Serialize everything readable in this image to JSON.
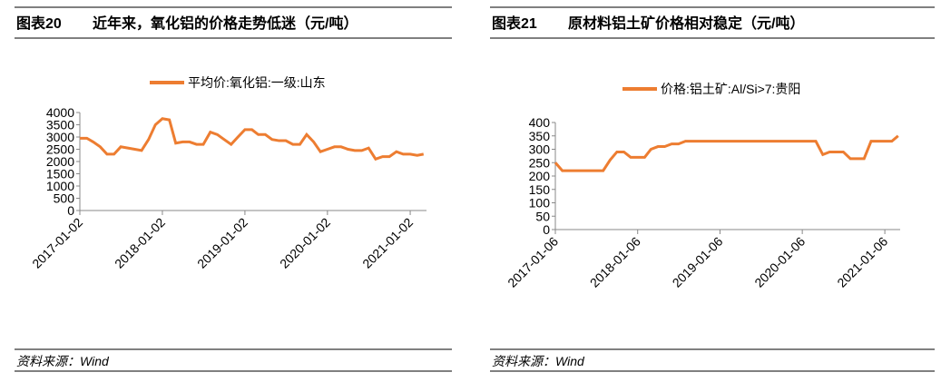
{
  "header": [
    {
      "number": "图表20",
      "title": "近年来，氧化铝的价格走势低迷（元/吨）"
    },
    {
      "number": "图表21",
      "title": "原材料铝土矿价格相对稳定（元/吨）"
    }
  ],
  "source": [
    "资料来源：Wind",
    "资料来源：Wind"
  ],
  "chart_data": [
    {
      "type": "line",
      "x": [
        "2017-01-02",
        "2017-02-02",
        "2017-03-02",
        "2017-04-02",
        "2017-05-02",
        "2017-06-02",
        "2017-07-02",
        "2017-08-02",
        "2017-09-02",
        "2017-10-02",
        "2017-11-02",
        "2017-12-02",
        "2018-01-02",
        "2018-02-02",
        "2018-03-02",
        "2018-04-02",
        "2018-05-02",
        "2018-06-02",
        "2018-07-02",
        "2018-08-02",
        "2018-09-02",
        "2018-10-02",
        "2018-11-02",
        "2018-12-02",
        "2019-01-02",
        "2019-02-02",
        "2019-03-02",
        "2019-04-02",
        "2019-05-02",
        "2019-06-02",
        "2019-07-02",
        "2019-08-02",
        "2019-09-02",
        "2019-10-02",
        "2019-11-02",
        "2019-12-02",
        "2020-01-02",
        "2020-02-02",
        "2020-03-02",
        "2020-04-02",
        "2020-05-02",
        "2020-06-02",
        "2020-07-02",
        "2020-08-02",
        "2020-09-02",
        "2020-10-02",
        "2020-11-02",
        "2020-12-02",
        "2021-01-02",
        "2021-02-02",
        "2021-03-02"
      ],
      "series": [
        {
          "name": "平均价:氧化铝:一级:山东",
          "color": "#ed7d31",
          "values": [
            2950,
            2950,
            2800,
            2600,
            2300,
            2300,
            2600,
            2550,
            2500,
            2450,
            2900,
            3500,
            3750,
            3700,
            2750,
            2800,
            2800,
            2700,
            2700,
            3200,
            3100,
            2900,
            2700,
            3000,
            3300,
            3300,
            3100,
            3100,
            2900,
            2850,
            2850,
            2700,
            2700,
            3100,
            2800,
            2400,
            2500,
            2600,
            2600,
            2500,
            2450,
            2450,
            2550,
            2100,
            2200,
            2200,
            2400,
            2300,
            2300,
            2250,
            2300
          ]
        }
      ],
      "xlim": [
        "2017-01-02",
        "2021-03-15"
      ],
      "xticks": [
        "2017-01-02",
        "2018-01-02",
        "2019-01-02",
        "2020-01-02",
        "2021-01-02"
      ],
      "ylim": [
        0,
        4000
      ],
      "yticks": [
        0,
        500,
        1000,
        1500,
        2000,
        2500,
        3000,
        3500,
        4000
      ]
    },
    {
      "type": "line",
      "x": [
        "2017-01-06",
        "2017-02-06",
        "2017-03-06",
        "2017-04-06",
        "2017-05-06",
        "2017-06-06",
        "2017-07-06",
        "2017-08-06",
        "2017-09-06",
        "2017-10-06",
        "2017-11-06",
        "2017-12-06",
        "2018-01-06",
        "2018-02-06",
        "2018-03-06",
        "2018-04-06",
        "2018-05-06",
        "2018-06-06",
        "2018-07-06",
        "2018-08-06",
        "2018-09-06",
        "2018-10-06",
        "2018-11-06",
        "2018-12-06",
        "2019-01-06",
        "2019-02-06",
        "2019-03-06",
        "2019-04-06",
        "2019-05-06",
        "2019-06-06",
        "2019-07-06",
        "2019-08-06",
        "2019-09-06",
        "2019-10-06",
        "2019-11-06",
        "2019-12-06",
        "2020-01-06",
        "2020-02-06",
        "2020-03-06",
        "2020-04-06",
        "2020-05-06",
        "2020-06-06",
        "2020-07-06",
        "2020-08-06",
        "2020-09-06",
        "2020-10-06",
        "2020-11-06",
        "2020-12-06",
        "2021-01-06",
        "2021-02-06",
        "2021-03-06"
      ],
      "series": [
        {
          "name": "价格:铝土矿:Al/Si>7:贵阳",
          "color": "#ed7d31",
          "values": [
            250,
            220,
            220,
            220,
            220,
            220,
            220,
            220,
            260,
            290,
            290,
            270,
            270,
            270,
            300,
            310,
            310,
            320,
            320,
            330,
            330,
            330,
            330,
            330,
            330,
            330,
            330,
            330,
            330,
            330,
            330,
            330,
            330,
            330,
            330,
            330,
            330,
            330,
            330,
            280,
            290,
            290,
            290,
            265,
            265,
            265,
            330,
            330,
            330,
            330,
            350
          ]
        }
      ],
      "xlim": [
        "2017-01-06",
        "2021-03-15"
      ],
      "xticks": [
        "2017-01-06",
        "2018-01-06",
        "2019-01-06",
        "2020-01-06",
        "2021-01-06"
      ],
      "ylim": [
        0,
        400
      ],
      "yticks": [
        0,
        50,
        100,
        150,
        200,
        250,
        300,
        350,
        400
      ]
    }
  ]
}
